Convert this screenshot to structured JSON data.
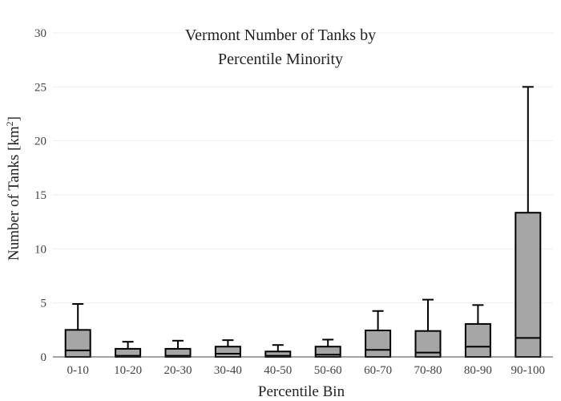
{
  "chart_data": {
    "type": "box",
    "title_line1": "Vermont Number of Tanks by",
    "title_line2": "Percentile Minority",
    "xlabel": "Percentile Bin",
    "ylabel_main": "Number of Tanks  [km",
    "ylabel_sup": "2",
    "ylabel_close": "]",
    "ylim": [
      0,
      30
    ],
    "yticks": [
      0,
      5,
      10,
      15,
      20,
      25,
      30
    ],
    "grid": true,
    "box_color": "#a6a6a6",
    "line_color": "#000000",
    "grid_color": "#eeeeee",
    "categories": [
      "0-10",
      "10-20",
      "20-30",
      "30-40",
      "40-50",
      "50-60",
      "60-70",
      "70-80",
      "80-90",
      "90-100"
    ],
    "boxes": [
      {
        "min": 0,
        "q1": 0.1,
        "median": 0.6,
        "q3": 2.5,
        "max": 4.9
      },
      {
        "min": 0,
        "q1": 0.05,
        "median": 0.1,
        "q3": 0.75,
        "max": 1.4
      },
      {
        "min": 0,
        "q1": 0.05,
        "median": 0.1,
        "q3": 0.75,
        "max": 1.5
      },
      {
        "min": 0,
        "q1": 0.05,
        "median": 0.3,
        "q3": 0.95,
        "max": 1.55
      },
      {
        "min": 0,
        "q1": 0.05,
        "median": 0.1,
        "q3": 0.5,
        "max": 1.1
      },
      {
        "min": 0,
        "q1": 0.05,
        "median": 0.2,
        "q3": 0.95,
        "max": 1.6
      },
      {
        "min": 0,
        "q1": 0.1,
        "median": 0.65,
        "q3": 2.45,
        "max": 4.25
      },
      {
        "min": 0,
        "q1": 0.05,
        "median": 0.4,
        "q3": 2.4,
        "max": 5.3
      },
      {
        "min": 0,
        "q1": 0.1,
        "median": 0.95,
        "q3": 3.05,
        "max": 4.8
      },
      {
        "min": 0,
        "q1": 0.1,
        "median": 1.75,
        "q3": 13.35,
        "max": 25.0
      }
    ]
  }
}
